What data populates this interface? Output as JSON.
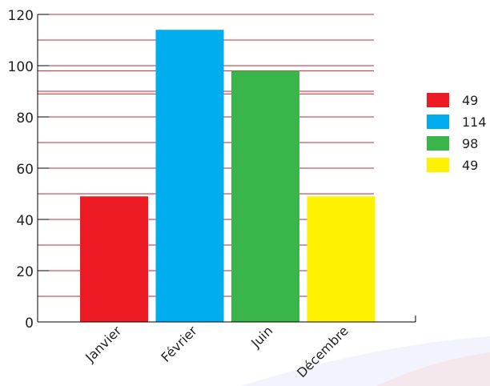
{
  "chart_data": {
    "type": "bar",
    "title": "",
    "xlabel": "",
    "ylabel": "",
    "categories": [
      "Janvier",
      "Février",
      "Juin",
      "Décembre"
    ],
    "values": [
      49,
      114,
      98,
      49
    ],
    "colors": [
      "#ed1c24",
      "#00aeef",
      "#39b54a",
      "#fff200"
    ],
    "ylim": [
      0,
      120
    ],
    "yticks": [
      0,
      20,
      40,
      60,
      80,
      100,
      120
    ],
    "gridlines": [
      10,
      20,
      30,
      40,
      50,
      60,
      70,
      80,
      90,
      100,
      110,
      120,
      98,
      89,
      90
    ],
    "grid_color": "#c1272d",
    "grid": true,
    "legend": {
      "position": "right",
      "entries": [
        "49",
        "114",
        "98",
        "49"
      ]
    }
  }
}
